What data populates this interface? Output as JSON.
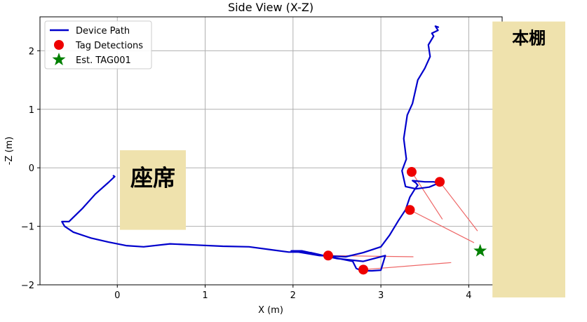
{
  "chart_data": {
    "type": "line",
    "title": "Side View (X-Z)",
    "xlabel": "X (m)",
    "ylabel": "-Z (m)",
    "xlim": [
      -0.88,
      4.38
    ],
    "ylim": [
      -2.0,
      2.58
    ],
    "xticks": [
      0,
      1,
      2,
      3,
      4
    ],
    "yticks": [
      -2,
      -1,
      0,
      1,
      2
    ],
    "grid": true,
    "legend": {
      "placement": "top-left",
      "entries": [
        {
          "label": "Device Path",
          "color": "#0000cc",
          "marker": "line"
        },
        {
          "label": "Tag Detections",
          "color": "#ee0000",
          "marker": "circle"
        },
        {
          "label": "Est. TAG001",
          "color": "#008000",
          "marker": "star"
        }
      ]
    },
    "series": [
      {
        "name": "Device Path",
        "color": "#0000cc",
        "x": [
          -0.05,
          -0.03,
          -0.1,
          -0.25,
          -0.4,
          -0.55,
          -0.63,
          -0.6,
          -0.5,
          -0.3,
          -0.1,
          0.1,
          0.3,
          0.6,
          0.9,
          1.2,
          1.5,
          1.75,
          1.95,
          2.05,
          2.2,
          2.35,
          2.55,
          2.68,
          2.72,
          2.78,
          2.9,
          3.0,
          3.05,
          2.8,
          2.5,
          2.1,
          1.98,
          2.3,
          2.6,
          2.8,
          3.0,
          3.1,
          3.2,
          3.28,
          3.33,
          3.38,
          3.42,
          3.4,
          3.36,
          3.5,
          3.6,
          3.66,
          3.55,
          3.4,
          3.28,
          3.24,
          3.29,
          3.26,
          3.3,
          3.36,
          3.42,
          3.5,
          3.56,
          3.54,
          3.6,
          3.58,
          3.65,
          3.62,
          3.66
        ],
        "y": [
          -0.13,
          -0.15,
          -0.25,
          -0.45,
          -0.7,
          -0.92,
          -0.92,
          -1.0,
          -1.1,
          -1.2,
          -1.27,
          -1.33,
          -1.35,
          -1.3,
          -1.32,
          -1.34,
          -1.35,
          -1.4,
          -1.44,
          -1.44,
          -1.45,
          -1.5,
          -1.56,
          -1.6,
          -1.72,
          -1.76,
          -1.76,
          -1.75,
          -1.5,
          -1.6,
          -1.55,
          -1.42,
          -1.42,
          -1.5,
          -1.52,
          -1.45,
          -1.35,
          -1.15,
          -0.9,
          -0.72,
          -0.5,
          -0.38,
          -0.3,
          -0.26,
          -0.22,
          -0.24,
          -0.24,
          -0.26,
          -0.33,
          -0.36,
          -0.32,
          -0.05,
          0.15,
          0.5,
          0.9,
          1.1,
          1.5,
          1.7,
          1.9,
          2.1,
          2.25,
          2.3,
          2.35,
          2.42,
          2.4
        ]
      },
      {
        "name": "Tag Detections",
        "color": "#ee0000",
        "points": [
          {
            "x": 3.35,
            "y": -0.07
          },
          {
            "x": 3.67,
            "y": -0.24
          },
          {
            "x": 3.33,
            "y": -0.72
          },
          {
            "x": 2.4,
            "y": -1.5
          },
          {
            "x": 2.8,
            "y": -1.74
          }
        ]
      },
      {
        "name": "Est. TAG001",
        "color": "#008000",
        "points": [
          {
            "x": 4.13,
            "y": -1.42
          }
        ]
      }
    ],
    "rays": [
      {
        "from": [
          3.35,
          -0.07
        ],
        "to": [
          3.7,
          -0.88
        ]
      },
      {
        "from": [
          3.67,
          -0.24
        ],
        "to": [
          4.1,
          -1.08
        ]
      },
      {
        "from": [
          3.33,
          -0.72
        ],
        "to": [
          4.06,
          -1.28
        ]
      },
      {
        "from": [
          2.4,
          -1.5
        ],
        "to": [
          3.37,
          -1.52
        ]
      },
      {
        "from": [
          2.8,
          -1.74
        ],
        "to": [
          3.8,
          -1.62
        ]
      }
    ],
    "annotations": [
      {
        "text": "座席",
        "color": "#efe2ad",
        "x0": 0.03,
        "x1": 0.78,
        "y0": -1.06,
        "y1": 0.3,
        "font_px": 32
      },
      {
        "text": "本棚",
        "color": "#efe2ad",
        "x0": 4.27,
        "x1": 5.1,
        "y0": -2.22,
        "y1": 2.5,
        "font_px": 24
      }
    ]
  }
}
